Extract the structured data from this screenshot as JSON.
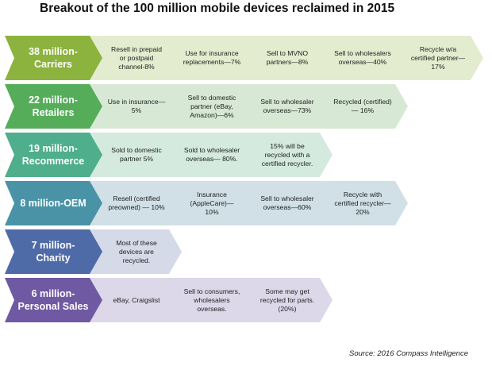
{
  "title": "Breakout of the 100 million mobile devices reclaimed in 2015",
  "source": "Source: 2016 Compass Intelligence",
  "rows": [
    {
      "label": "38 million-Carriers",
      "head_color": "#8cb33e",
      "item_color": "#e3ecce",
      "items": [
        "Resell in prepaid or postpaid channel-8%",
        "Use  for insurance replacements—7%",
        "Sell to MVNO partners—8%",
        "Sell  to wholesalers overseas—40%",
        "Recycle w/a certified partner—17%"
      ]
    },
    {
      "label": "22 million-Retailers",
      "head_color": "#55ad5a",
      "item_color": "#d7e9d5",
      "items": [
        "Use in insurance—5%",
        "Sell to domestic partner (eBay, Amazon)—6%",
        "Sell to wholesaler overseas—73%",
        "Recycled (certified)— 16%"
      ]
    },
    {
      "label": "19 million-Recommerce",
      "head_color": "#4fae8b",
      "item_color": "#d4eadf",
      "items": [
        "Sold to domestic partner 5%",
        "Sold to wholesaler overseas— 80%.",
        "15% will be recycled with a certified recycler."
      ]
    },
    {
      "label": "8 million-OEM",
      "head_color": "#4a93a7",
      "item_color": "#d0e0e6",
      "items": [
        "Resell (certified preowned) — 10%",
        "Insurance (AppleCare)— 10%",
        "Sell to wholesaler overseas—60%",
        "Recycle with certified recycler—20%"
      ]
    },
    {
      "label": "7 million-Charity",
      "head_color": "#4f6ba7",
      "item_color": "#d5dae9",
      "items": [
        "Most of these devices are recycled."
      ]
    },
    {
      "label": "6 million-Personal Sales",
      "head_color": "#7059a3",
      "item_color": "#dcd8e9",
      "items": [
        "eBay, Craigslist",
        "Sell to consumers, wholesalers overseas.",
        "Some may get recycled for parts. (20%)"
      ]
    }
  ]
}
